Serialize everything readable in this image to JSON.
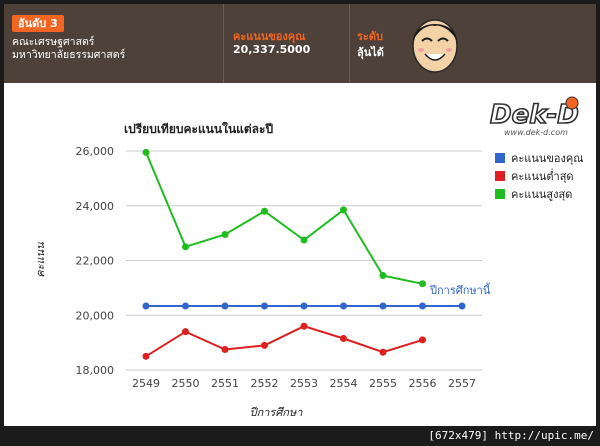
{
  "header": {
    "rank_label": "อันดับ 3",
    "faculty_line1": "คณะเศรษฐศาสตร์",
    "faculty_line2": "มหาวิทยาลัยธรรมศาสตร์",
    "score_label": "คะแนนของคุณ",
    "score_value": "20,337.5000",
    "level_label": "ระดับ",
    "level_value": "ลุ้นได้",
    "mascot_icon": "smiling-face-icon"
  },
  "logo": {
    "text": "Dek-D",
    "url_text": "www.dek-d.com"
  },
  "colors": {
    "your_score": "#3366cc",
    "min": "#dc1f1f",
    "max": "#1fbd1f",
    "header_bg": "#4d4139",
    "accent": "#f26522"
  },
  "chart_data": {
    "type": "line",
    "title": "เปรียบเทียบคะแนนในแต่ละปี",
    "xlabel": "ปีการศึกษา",
    "ylabel": "คะแนน",
    "categories": [
      "2549",
      "2550",
      "2551",
      "2552",
      "2553",
      "2554",
      "2555",
      "2556",
      "2557"
    ],
    "yticks": [
      "18,000",
      "20,000",
      "22,000",
      "24,000",
      "26,000"
    ],
    "ytick_values": [
      18000,
      20000,
      22000,
      24000,
      26000
    ],
    "ylim": [
      18000,
      26000
    ],
    "grid": true,
    "legend_position": "right",
    "annotation": "ปีการศึกษานี้",
    "series": [
      {
        "name": "คะแนนของคุณ",
        "color": "#3366cc",
        "values": [
          20337.5,
          20337.5,
          20337.5,
          20337.5,
          20337.5,
          20337.5,
          20337.5,
          20337.5,
          20337.5
        ]
      },
      {
        "name": "คะแนนต่ำสุด",
        "color": "#dc1f1f",
        "values": [
          18500,
          19400,
          18750,
          18900,
          19600,
          19150,
          18650,
          19100,
          null
        ]
      },
      {
        "name": "คะแนนสูงสุด",
        "color": "#1fbd1f",
        "values": [
          25950,
          22500,
          22950,
          23800,
          22750,
          23850,
          21450,
          21150,
          null
        ]
      }
    ]
  },
  "watermark": "[672x479] http://upic.me/"
}
